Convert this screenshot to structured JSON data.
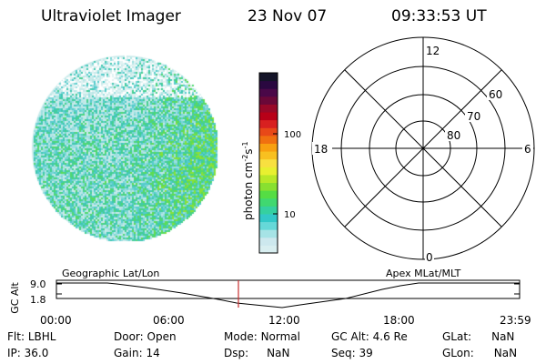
{
  "header": {
    "title": "Ultraviolet Imager",
    "date": "23 Nov 07",
    "time": "09:33:53 UT"
  },
  "colorbar": {
    "label_text": "photon cm",
    "label_sup1": "-2",
    "label_mid": "s",
    "label_sup2": "-1",
    "ticks": [
      {
        "label": "100",
        "value": 100
      },
      {
        "label": "10",
        "value": 10
      }
    ],
    "colors": [
      "#d8eef0",
      "#cde8ee",
      "#a6e3e6",
      "#66d8d8",
      "#33c8c8",
      "#35d0a0",
      "#40d870",
      "#55dd44",
      "#88e030",
      "#b8e828",
      "#e8f030",
      "#f8e040",
      "#f8c020",
      "#f8a010",
      "#f07010",
      "#e84818",
      "#d82020",
      "#b80018",
      "#980828",
      "#6a0838",
      "#4a0848",
      "#2a0840",
      "#141428"
    ]
  },
  "polar": {
    "mlt_labels": {
      "top": "12",
      "left": "18",
      "right": "6",
      "bottom": "0"
    },
    "lat_labels": [
      "60",
      "70",
      "80"
    ]
  },
  "timeline": {
    "left_label": "Geographic Lat/Lon",
    "right_label": "Apex MLat/MLT",
    "y_axis_label": "GC Alt",
    "y_ticks": [
      "9.0",
      "1.8"
    ],
    "x_ticks": [
      "00:00",
      "06:00",
      "12:00",
      "18:00",
      "23:59"
    ],
    "current_time_marker": "09:33"
  },
  "footer": {
    "flt": {
      "label": "Flt:",
      "value": "LBHL"
    },
    "ip": {
      "label": "IP:",
      "value": "36.0"
    },
    "door": {
      "label": "Door:",
      "value": "Open"
    },
    "gain": {
      "label": "Gain:",
      "value": "14"
    },
    "mode": {
      "label": "Mode:",
      "value": "Normal"
    },
    "dsp": {
      "label": "Dsp:",
      "value": "NaN"
    },
    "gcalt": {
      "label": "GC Alt:",
      "value": "4.6 Re"
    },
    "seq": {
      "label": "Seq:",
      "value": "39"
    },
    "glat": {
      "label": "GLat:",
      "value": "NaN"
    },
    "glon": {
      "label": "GLon:",
      "value": "NaN"
    }
  },
  "colors": {
    "marker": "#c83030",
    "disk_base": "#c8eaea"
  }
}
